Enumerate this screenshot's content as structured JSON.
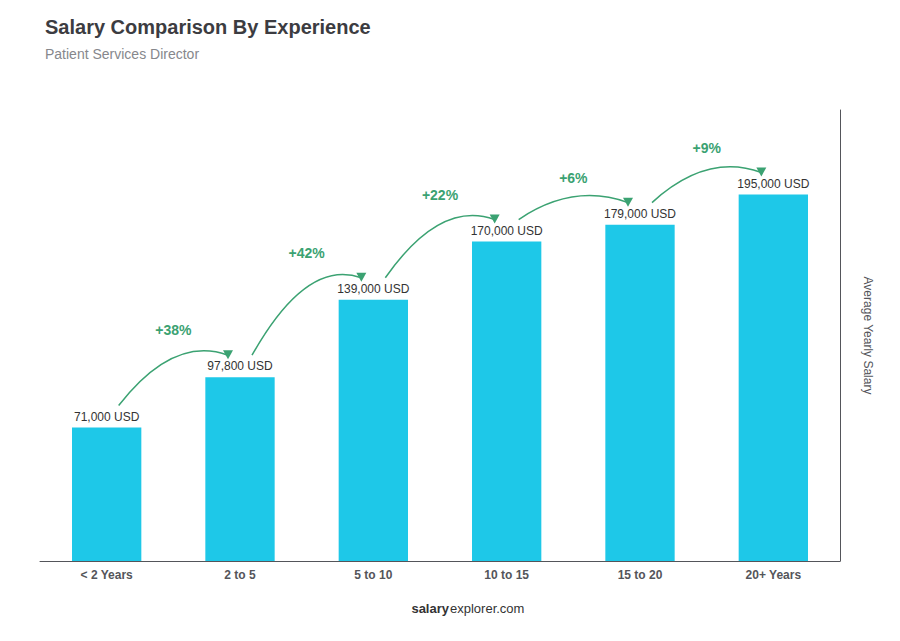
{
  "chart_data": {
    "type": "bar",
    "title": "Salary Comparison By Experience",
    "subtitle": "Patient Services Director",
    "categories": [
      "< 2 Years",
      "2 to 5",
      "5 to 10",
      "10 to 15",
      "15 to 20",
      "20+ Years"
    ],
    "values": [
      71000,
      97800,
      139000,
      170000,
      179000,
      195000
    ],
    "value_labels": [
      "71,000 USD",
      "97,800 USD",
      "139,000 USD",
      "170,000 USD",
      "179,000 USD",
      "195,000 USD"
    ],
    "data_labels": true,
    "color": "#1ec8e8",
    "ylim": [
      0,
      240000
    ],
    "ylabel": "Average Yearly Salary",
    "annotations": [
      "+38%",
      "+42%",
      "+22%",
      "+6%",
      "+9%"
    ],
    "footer": [
      "salary",
      "explorer.com"
    ],
    "grid": false,
    "tick_labels": "x"
  }
}
